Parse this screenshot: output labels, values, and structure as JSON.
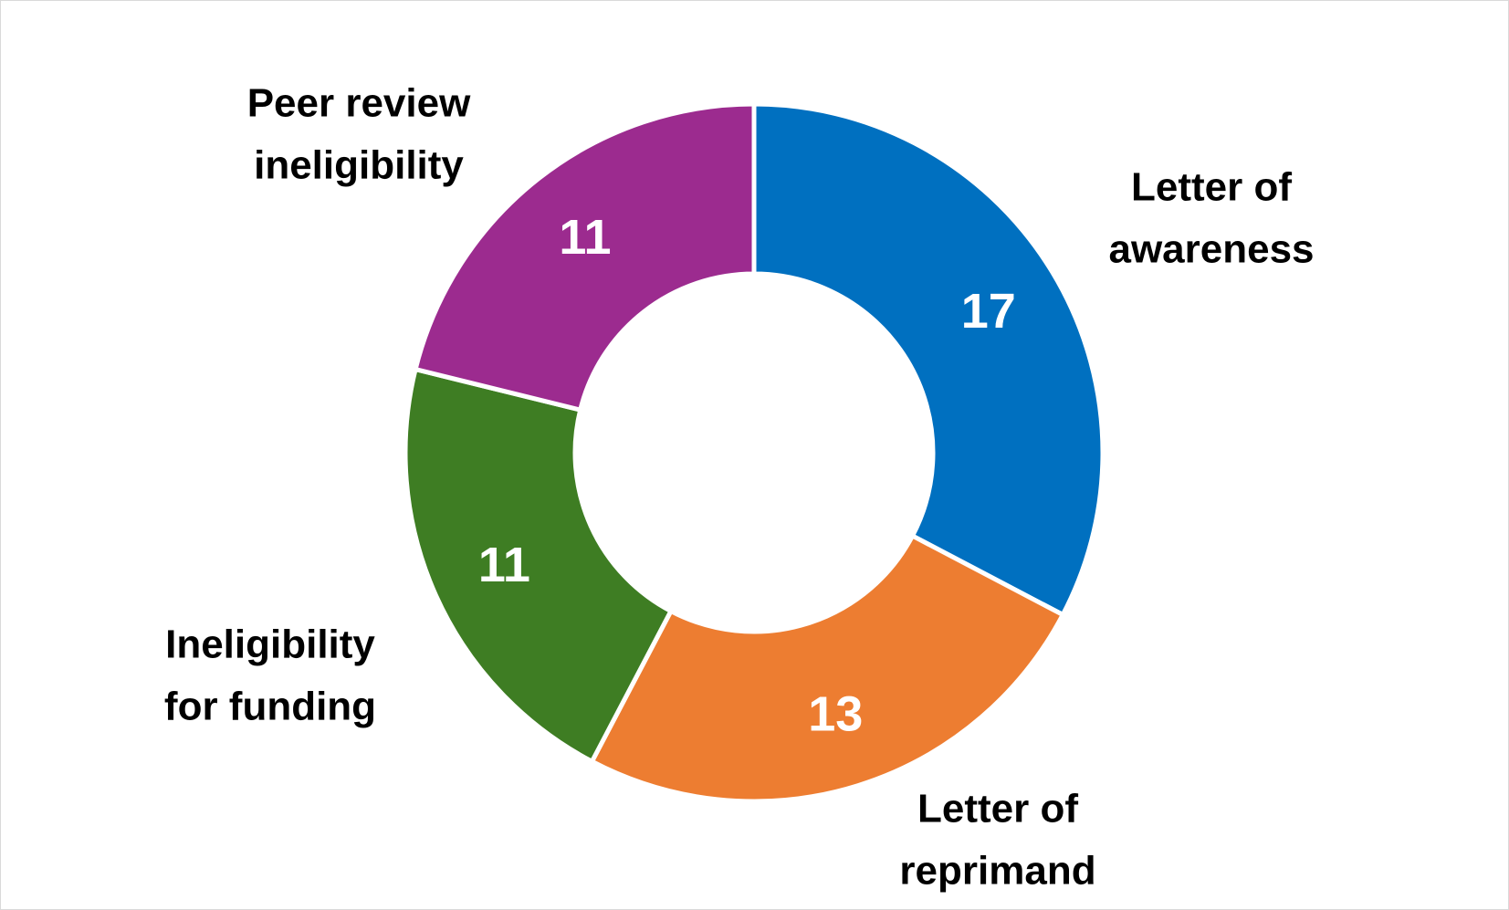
{
  "chart_data": {
    "type": "pie",
    "variant": "donut",
    "slices": [
      {
        "label": [
          "Letter of",
          "awareness"
        ],
        "value": 17,
        "color": "#0070C0"
      },
      {
        "label": [
          "Letter of",
          "reprimand"
        ],
        "value": 13,
        "color": "#ED7D31"
      },
      {
        "label": [
          "Ineligibility",
          "for funding"
        ],
        "value": 11,
        "color": "#3E7D23"
      },
      {
        "label": [
          "Peer review",
          "ineligibility"
        ],
        "value": 11,
        "color": "#9C2B8F"
      }
    ],
    "start": "12 o'clock",
    "direction": "clockwise",
    "legend": "none",
    "data_labels": "inside slices"
  }
}
